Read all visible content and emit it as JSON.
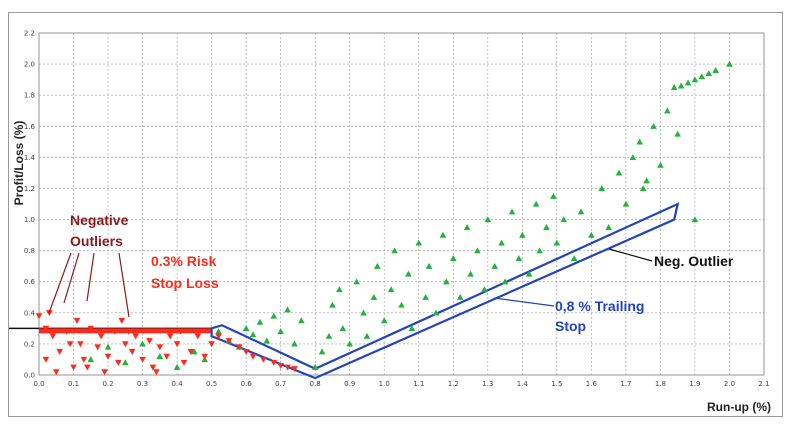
{
  "chart_data": {
    "type": "scatter",
    "xlabel": "Run-up (%)",
    "ylabel": "Profit/Loss (%)",
    "xlim": [
      0,
      2.1
    ],
    "ylim": [
      0,
      2.2
    ],
    "x_ticks": [
      "0.0",
      "0.1",
      "0.2",
      "0.3",
      "0.4",
      "0.5",
      "0.6",
      "0.7",
      "0.8",
      "0.9",
      "1.0",
      "1.1",
      "1.2",
      "1.3",
      "1.4",
      "1.5",
      "1.6",
      "1.7",
      "1.8",
      "1.9",
      "2.0",
      "2.1"
    ],
    "y_ticks": [
      "0.0",
      "0.2",
      "0.4",
      "0.6",
      "0.8",
      "1.0",
      "1.2",
      "1.4",
      "1.6",
      "1.8",
      "2.0",
      "2.2"
    ],
    "grid": true,
    "series": [
      {
        "marker": "triangle-up",
        "color": "#22b33a",
        "points": [
          [
            0.52,
            0.28
          ],
          [
            0.55,
            0.22
          ],
          [
            0.58,
            0.18
          ],
          [
            0.6,
            0.3
          ],
          [
            0.62,
            0.26
          ],
          [
            0.64,
            0.34
          ],
          [
            0.66,
            0.22
          ],
          [
            0.68,
            0.38
          ],
          [
            0.7,
            0.28
          ],
          [
            0.72,
            0.42
          ],
          [
            0.74,
            0.2
          ],
          [
            0.76,
            0.35
          ],
          [
            0.8,
            0.05
          ],
          [
            0.82,
            0.15
          ],
          [
            0.84,
            0.25
          ],
          [
            0.85,
            0.45
          ],
          [
            0.87,
            0.55
          ],
          [
            0.88,
            0.3
          ],
          [
            0.9,
            0.2
          ],
          [
            0.92,
            0.6
          ],
          [
            0.94,
            0.4
          ],
          [
            0.95,
            0.25
          ],
          [
            0.97,
            0.5
          ],
          [
            0.98,
            0.7
          ],
          [
            1.0,
            0.35
          ],
          [
            1.02,
            0.55
          ],
          [
            1.03,
            0.8
          ],
          [
            1.05,
            0.45
          ],
          [
            1.07,
            0.65
          ],
          [
            1.08,
            0.3
          ],
          [
            1.1,
            0.85
          ],
          [
            1.12,
            0.5
          ],
          [
            1.13,
            0.7
          ],
          [
            1.15,
            0.4
          ],
          [
            1.17,
            0.9
          ],
          [
            1.18,
            0.6
          ],
          [
            1.2,
            0.75
          ],
          [
            1.22,
            0.5
          ],
          [
            1.24,
            0.95
          ],
          [
            1.25,
            0.65
          ],
          [
            1.27,
            0.8
          ],
          [
            1.29,
            0.55
          ],
          [
            1.3,
            1.0
          ],
          [
            1.32,
            0.7
          ],
          [
            1.34,
            0.85
          ],
          [
            1.35,
            0.6
          ],
          [
            1.37,
            1.05
          ],
          [
            1.39,
            0.75
          ],
          [
            1.4,
            0.9
          ],
          [
            1.42,
            0.65
          ],
          [
            1.44,
            1.1
          ],
          [
            1.45,
            0.8
          ],
          [
            1.47,
            0.95
          ],
          [
            1.49,
            1.15
          ],
          [
            1.5,
            0.85
          ],
          [
            1.52,
            1.0
          ],
          [
            1.55,
            0.75
          ],
          [
            1.57,
            1.05
          ],
          [
            1.6,
            0.9
          ],
          [
            1.63,
            1.2
          ],
          [
            1.65,
            0.95
          ],
          [
            1.68,
            1.3
          ],
          [
            1.7,
            1.1
          ],
          [
            1.72,
            1.4
          ],
          [
            1.74,
            1.5
          ],
          [
            1.76,
            1.25
          ],
          [
            1.78,
            1.6
          ],
          [
            1.8,
            1.35
          ],
          [
            1.82,
            1.7
          ],
          [
            1.84,
            1.85
          ],
          [
            1.86,
            1.86
          ],
          [
            1.88,
            1.88
          ],
          [
            1.9,
            1.9
          ],
          [
            1.92,
            1.92
          ],
          [
            1.94,
            1.94
          ],
          [
            1.96,
            1.96
          ],
          [
            2.0,
            2.0
          ],
          [
            1.9,
            1.0
          ],
          [
            1.85,
            1.55
          ],
          [
            1.75,
            1.2
          ],
          [
            0.15,
            0.1
          ],
          [
            0.25,
            0.08
          ],
          [
            0.35,
            0.12
          ],
          [
            0.4,
            0.05
          ],
          [
            0.45,
            0.15
          ],
          [
            0.3,
            0.2
          ],
          [
            0.2,
            0.18
          ],
          [
            0.48,
            0.1
          ]
        ]
      },
      {
        "marker": "triangle-down",
        "color": "#ff2a1a",
        "points": [
          [
            0.0,
            0.38
          ],
          [
            0.02,
            0.3
          ],
          [
            0.03,
            0.4
          ],
          [
            0.04,
            0.25
          ],
          [
            0.06,
            0.15
          ],
          [
            0.08,
            0.28
          ],
          [
            0.1,
            0.05
          ],
          [
            0.11,
            0.35
          ],
          [
            0.12,
            0.2
          ],
          [
            0.13,
            0.1
          ],
          [
            0.15,
            0.3
          ],
          [
            0.17,
            0.18
          ],
          [
            0.18,
            0.25
          ],
          [
            0.2,
            0.12
          ],
          [
            0.22,
            0.28
          ],
          [
            0.23,
            0.08
          ],
          [
            0.24,
            0.35
          ],
          [
            0.25,
            0.2
          ],
          [
            0.27,
            0.15
          ],
          [
            0.28,
            0.25
          ],
          [
            0.3,
            0.1
          ],
          [
            0.32,
            0.22
          ],
          [
            0.33,
            0.05
          ],
          [
            0.35,
            0.18
          ],
          [
            0.37,
            0.12
          ],
          [
            0.38,
            0.25
          ],
          [
            0.4,
            0.2
          ],
          [
            0.42,
            0.08
          ],
          [
            0.44,
            0.15
          ],
          [
            0.46,
            0.25
          ],
          [
            0.48,
            0.12
          ],
          [
            0.5,
            0.2
          ],
          [
            0.52,
            0.25
          ],
          [
            0.55,
            0.22
          ],
          [
            0.58,
            0.18
          ],
          [
            0.6,
            0.15
          ],
          [
            0.62,
            0.12
          ],
          [
            0.65,
            0.1
          ],
          [
            0.68,
            0.08
          ],
          [
            0.7,
            0.06
          ],
          [
            0.72,
            0.05
          ],
          [
            0.74,
            0.04
          ],
          [
            0.02,
            0.1
          ],
          [
            0.05,
            0.02
          ],
          [
            0.09,
            0.2
          ],
          [
            0.14,
            0.05
          ],
          [
            0.19,
            0.02
          ],
          [
            0.26,
            0.28
          ],
          [
            0.34,
            0.02
          ],
          [
            0.41,
            0.28
          ]
        ]
      }
    ],
    "annotations": [
      {
        "text": "Negative",
        "color": "#8b1a1a"
      },
      {
        "text": "Outliers",
        "color": "#8b1a1a"
      },
      {
        "text": "0.3%  Risk",
        "color": "#ff2a1a"
      },
      {
        "text": "Stop Loss",
        "color": "#ff2a1a"
      },
      {
        "text": "Neg. Outlier",
        "color": "#111111"
      },
      {
        "text": "0,8 %  Trailing",
        "color": "#2244bb"
      },
      {
        "text": "Stop",
        "color": "#2244bb"
      }
    ]
  }
}
